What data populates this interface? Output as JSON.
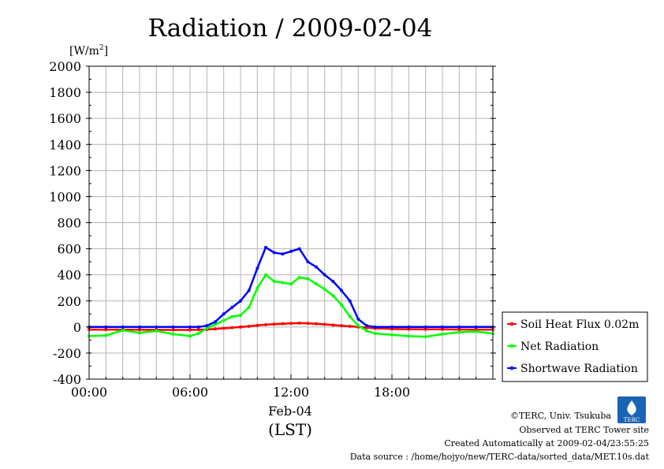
{
  "chart_data": {
    "type": "line",
    "title": "Radiation / 2009-02-04",
    "ylabel": "[W/m²]",
    "ylabel_base": "[W/m",
    "ylabel_sup": "2",
    "ylabel_end": "]",
    "ylim": [
      -400,
      2000
    ],
    "yticks": [
      "2000",
      "1800",
      "1600",
      "1400",
      "1200",
      "1000",
      "800",
      "600",
      "400",
      "200",
      "0",
      "-200",
      "-400"
    ],
    "xlim": [
      0,
      24
    ],
    "xticks": [
      "00:00",
      "06:00",
      "12:00",
      "18:00"
    ],
    "x_date_label": "Feb-04",
    "xlabel": "(LST)",
    "grid": true,
    "legend_position": "right",
    "x": [
      0,
      1,
      2,
      3,
      4,
      5,
      6,
      6.5,
      7,
      7.5,
      8,
      8.5,
      9,
      9.5,
      10,
      10.5,
      11,
      11.5,
      12,
      12.5,
      13,
      13.5,
      14,
      14.5,
      15,
      15.5,
      16,
      16.5,
      17,
      18,
      19,
      20,
      21,
      22,
      23,
      24
    ],
    "series": [
      {
        "name": "Soil Heat Flux 0.02m",
        "color": "#ff0000",
        "values": [
          -20,
          -20,
          -21,
          -21,
          -22,
          -22,
          -22,
          -21,
          -19,
          -15,
          -10,
          -5,
          0,
          5,
          12,
          18,
          22,
          25,
          28,
          30,
          28,
          25,
          20,
          15,
          10,
          5,
          0,
          -5,
          -10,
          -15,
          -17,
          -18,
          -18,
          -19,
          -20,
          -20
        ]
      },
      {
        "name": "Net Radiation",
        "color": "#00ff00",
        "values": [
          -70,
          -65,
          -25,
          -45,
          -30,
          -55,
          -70,
          -50,
          -10,
          20,
          50,
          80,
          90,
          150,
          300,
          400,
          350,
          340,
          330,
          380,
          370,
          330,
          290,
          240,
          170,
          80,
          10,
          -30,
          -50,
          -60,
          -70,
          -75,
          -55,
          -40,
          -35,
          -50
        ]
      },
      {
        "name": "Shortwave Radiation",
        "color": "#0000ff",
        "values": [
          0,
          0,
          0,
          0,
          0,
          0,
          0,
          0,
          10,
          40,
          100,
          150,
          200,
          280,
          450,
          610,
          570,
          560,
          580,
          600,
          500,
          460,
          400,
          350,
          280,
          200,
          60,
          10,
          0,
          0,
          0,
          0,
          0,
          0,
          0,
          0
        ]
      }
    ]
  },
  "credits": {
    "copyright": "©TERC, Univ. Tsukuba",
    "observed": "Observed at TERC Tower site",
    "created": "Created Automatically at 2009-02-04/23:55:25",
    "source": "Data source : /home/hojyo/new/TERC-data/sorted_data/MET.10s.dat",
    "logo_text": "TERC"
  }
}
